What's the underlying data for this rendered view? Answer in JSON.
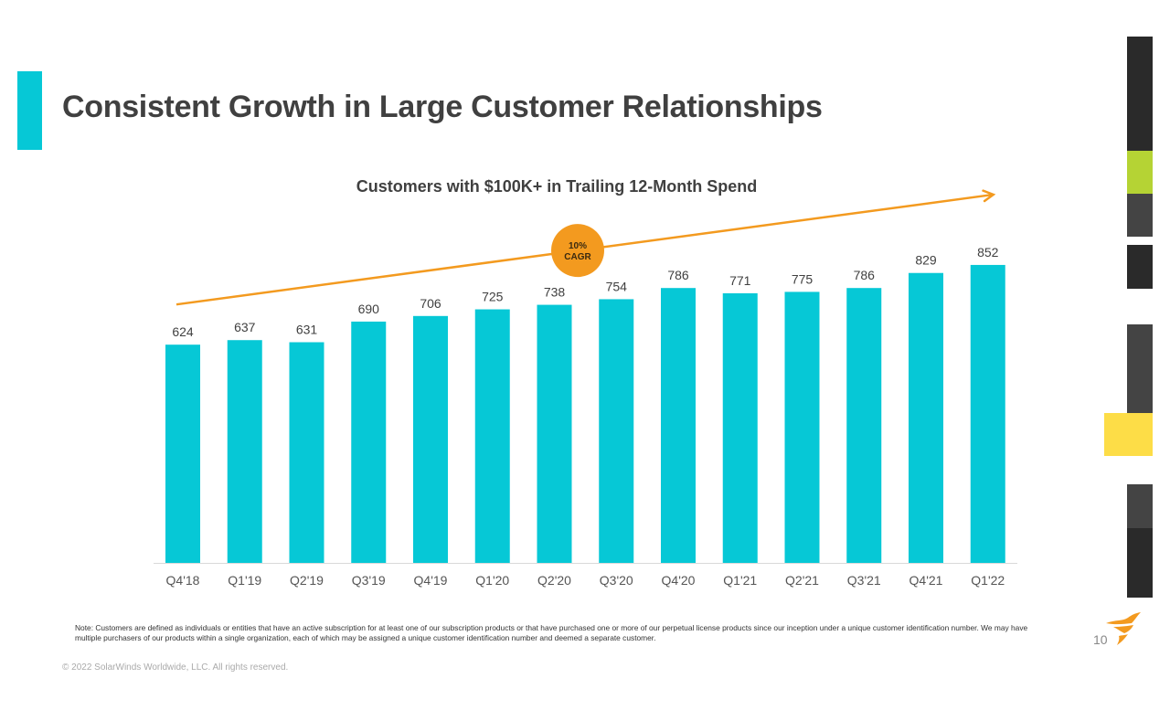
{
  "page": {
    "title": "Consistent Growth in Large Customer Relationships",
    "note": "Note: Customers are defined as individuals or entities that have an active subscription for at least one of our subscription products or that have purchased one or more of our perpetual license products since our inception under a unique customer identification number. We may have multiple purchasers of our products within a single organization, each of which may be assigned a unique customer identification number and deemed a separate customer.",
    "copyright": "© 2022 SolarWinds Worldwide, LLC. All rights reserved.",
    "page_number": "10",
    "logo_icon": "solarwinds-flame-icon"
  },
  "colors": {
    "accent": "#06c8d6",
    "bar": "#06c8d6",
    "trend": "#f39a1f",
    "badge": "#f39a1f",
    "text": "#404040",
    "deco_dark": "#2a2a2a",
    "deco_gray": "#444444",
    "deco_green": "#b5d334",
    "deco_yellow": "#fddd47"
  },
  "chart_data": {
    "type": "bar",
    "title": "Customers with $100K+ in Trailing 12-Month Spend",
    "xlabel": "",
    "ylabel": "",
    "categories": [
      "Q4'18",
      "Q1'19",
      "Q2'19",
      "Q3'19",
      "Q4'19",
      "Q1'20",
      "Q2'20",
      "Q3'20",
      "Q4'20",
      "Q1'21",
      "Q2'21",
      "Q3'21",
      "Q4'21",
      "Q1'22"
    ],
    "values": [
      624,
      637,
      631,
      690,
      706,
      725,
      738,
      754,
      786,
      771,
      775,
      786,
      829,
      852
    ],
    "data_labels": true,
    "ylim": [
      0,
      852
    ],
    "grid": false,
    "legend": "none",
    "annotations": [
      {
        "type": "trend-arrow",
        "from_category": "Q4'18",
        "to_category": "Q1'22",
        "label": "10% CAGR"
      }
    ],
    "badge": {
      "line1": "10%",
      "line2": "CAGR"
    }
  }
}
